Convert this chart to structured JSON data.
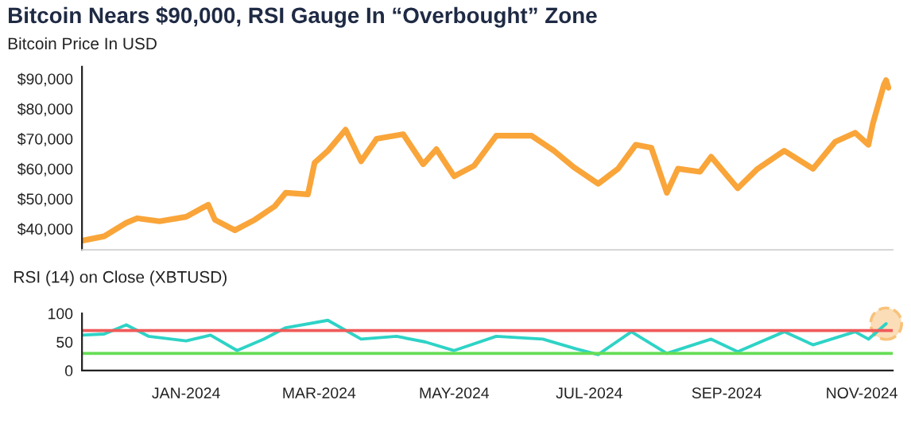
{
  "chart_data": [
    {
      "type": "line",
      "title": "Bitcoin Nears $90,000, RSI Gauge In “Overbought” Zone",
      "subtitle": "Bitcoin Price In USD",
      "x": [
        "2023-11-15",
        "2023-11-25",
        "2023-12-05",
        "2023-12-10",
        "2023-12-20",
        "2024-01-01",
        "2024-01-11",
        "2024-01-14",
        "2024-01-23",
        "2024-02-01",
        "2024-02-10",
        "2024-02-15",
        "2024-02-25",
        "2024-02-28",
        "2024-03-05",
        "2024-03-13",
        "2024-03-20",
        "2024-03-27",
        "2024-04-08",
        "2024-04-17",
        "2024-04-23",
        "2024-05-01",
        "2024-05-10",
        "2024-05-20",
        "2024-06-05",
        "2024-06-15",
        "2024-06-24",
        "2024-07-05",
        "2024-07-14",
        "2024-07-22",
        "2024-07-29",
        "2024-08-05",
        "2024-08-10",
        "2024-08-20",
        "2024-08-25",
        "2024-09-06",
        "2024-09-15",
        "2024-09-27",
        "2024-10-10",
        "2024-10-20",
        "2024-10-29",
        "2024-11-04",
        "2024-11-06",
        "2024-11-11",
        "2024-11-12",
        "2024-11-13"
      ],
      "series": [
        {
          "color": "#f9a53a",
          "values": [
            36000,
            37500,
            42000,
            43500,
            42500,
            44000,
            48000,
            43000,
            39500,
            43000,
            47500,
            52000,
            51500,
            62000,
            66000,
            73000,
            62500,
            70000,
            71500,
            61500,
            66500,
            57500,
            61000,
            71000,
            71000,
            66000,
            60500,
            55000,
            60000,
            68000,
            67000,
            52000,
            60000,
            59000,
            64000,
            53500,
            60000,
            66000,
            60000,
            69000,
            72000,
            68000,
            75000,
            88000,
            89500,
            87000
          ]
        }
      ],
      "xlim": [
        "2023-11-15",
        "2024-11-15"
      ],
      "ylim": [
        33000,
        94000
      ],
      "yticks": [
        {
          "value": 40000,
          "label": "$40,000"
        },
        {
          "value": 50000,
          "label": "$50,000"
        },
        {
          "value": 60000,
          "label": "$60,000"
        },
        {
          "value": 70000,
          "label": "$70,000"
        },
        {
          "value": 80000,
          "label": "$80,000"
        },
        {
          "value": 90000,
          "label": "$90,000"
        }
      ],
      "tick_labels": "y",
      "grid": false
    },
    {
      "type": "line",
      "title": "RSI (14) on Close (XBTUSD)",
      "x": [
        "2023-11-15",
        "2023-11-25",
        "2023-12-05",
        "2023-12-15",
        "2024-01-01",
        "2024-01-12",
        "2024-01-24",
        "2024-02-05",
        "2024-02-15",
        "2024-03-05",
        "2024-03-20",
        "2024-04-05",
        "2024-04-18",
        "2024-05-01",
        "2024-05-20",
        "2024-06-10",
        "2024-06-25",
        "2024-07-05",
        "2024-07-20",
        "2024-08-05",
        "2024-08-25",
        "2024-09-06",
        "2024-09-27",
        "2024-10-10",
        "2024-10-29",
        "2024-11-04",
        "2024-11-12"
      ],
      "series": [
        {
          "color": "#2ed3c6",
          "values": [
            62,
            64,
            80,
            60,
            52,
            62,
            35,
            55,
            75,
            88,
            55,
            60,
            50,
            35,
            60,
            55,
            38,
            28,
            68,
            30,
            55,
            33,
            68,
            45,
            68,
            55,
            82
          ]
        }
      ],
      "xlim": [
        "2023-11-15",
        "2024-11-15"
      ],
      "ylim": [
        0,
        100
      ],
      "yticks": [
        0,
        50,
        100
      ],
      "xticks": [
        {
          "value": "2024-01-01",
          "label": "JAN-2024"
        },
        {
          "value": "2024-03-01",
          "label": "MAR-2024"
        },
        {
          "value": "2024-05-01",
          "label": "MAY-2024"
        },
        {
          "value": "2024-07-01",
          "label": "JUL-2024"
        },
        {
          "value": "2024-09-01",
          "label": "SEP-2024"
        },
        {
          "value": "2024-11-01",
          "label": "NOV-2024"
        }
      ],
      "ref_lines": [
        {
          "axis": "y",
          "value": 70,
          "label": null,
          "color": "#f05a5a"
        },
        {
          "axis": "y",
          "value": 30,
          "label": null,
          "color": "#66dd55"
        }
      ],
      "grid": false
    }
  ]
}
